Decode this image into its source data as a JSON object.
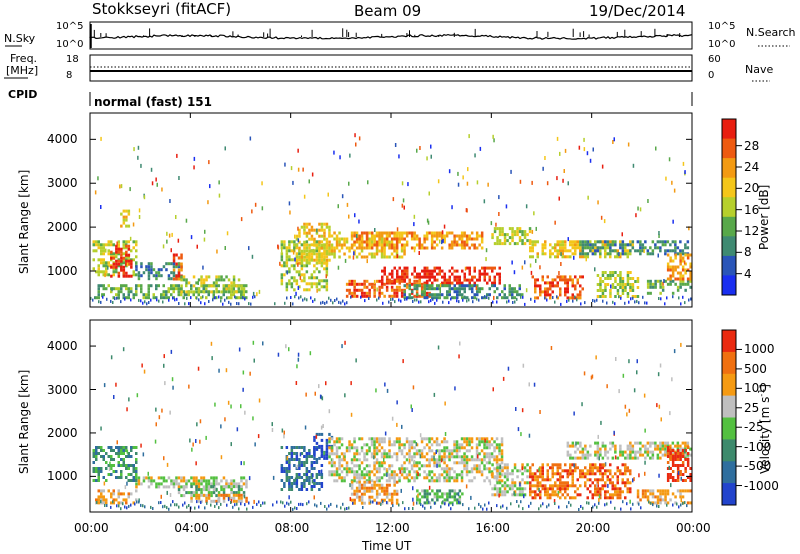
{
  "header": {
    "station": "Stokkseyri (fitACF)",
    "beam": "Beam 09",
    "date": "19/Dec/2014"
  },
  "params": {
    "nsky_label": "N.Sky",
    "nsky_ticks": [
      "10^5",
      "10^0"
    ],
    "nsearch_label": "N.Search",
    "nsearch_ticks": [
      "10^5",
      "10^0"
    ],
    "freq_label_1": "Freq.",
    "freq_label_2": "[MHz]",
    "freq_ticks": [
      "18",
      "8"
    ],
    "nave_label": "Nave",
    "nave_ticks": [
      "60",
      "0"
    ],
    "cpid_label": "CPID",
    "cpid_value": "normal (fast) 151"
  },
  "xaxis": {
    "label": "Time UT",
    "ticks": [
      "00:00",
      "04:00",
      "08:00",
      "12:00",
      "16:00",
      "20:00",
      "00:00"
    ],
    "range_hours": [
      0,
      24
    ]
  },
  "power_panel": {
    "ylabel": "Slant Range [km]",
    "yticks": [
      "1000",
      "2000",
      "3000",
      "4000"
    ],
    "ylim_km": [
      180,
      4600
    ],
    "colorbar_label": "Power [dB]",
    "colorbar_ticks": [
      "4",
      "8",
      "12",
      "16",
      "20",
      "24",
      "28"
    ],
    "colors": [
      "#1a2ff0",
      "#2a55b8",
      "#3f8a72",
      "#58a84a",
      "#b6cf2c",
      "#f4c61a",
      "#f39a12",
      "#ee5a10",
      "#e81e10"
    ]
  },
  "velocity_panel": {
    "ylabel": "Slant Range [km]",
    "yticks": [
      "1000",
      "2000",
      "3000",
      "4000"
    ],
    "ylim_km": [
      180,
      4600
    ],
    "colorbar_label": "Velocity [m s",
    "colorbar_label_sup": "-1",
    "colorbar_label_end": "]",
    "colorbar_ticks": [
      "1000",
      "500",
      "100",
      "25",
      "-25",
      "-100",
      "-500",
      "-1000"
    ],
    "colors": [
      "#2244cc",
      "#2f6e9e",
      "#3d8a6c",
      "#53c040",
      "#bfbfbf",
      "#f59a12",
      "#f07010",
      "#ea2a10"
    ]
  },
  "chart_data": {
    "type": "heatmap",
    "x_unit": "hours UT",
    "y_unit": "slant range km",
    "power_blocks": [
      {
        "t0": 0.1,
        "t1": 1.8,
        "r0": 900,
        "r1": 1700,
        "level": 4
      },
      {
        "t0": 0.8,
        "t1": 1.6,
        "r0": 900,
        "r1": 1600,
        "level": 8
      },
      {
        "t0": 1.8,
        "t1": 3.6,
        "r0": 800,
        "r1": 1200,
        "level": 2
      },
      {
        "t0": 3.3,
        "t1": 3.6,
        "r0": 800,
        "r1": 1400,
        "level": 7
      },
      {
        "t0": 0.2,
        "t1": 6.2,
        "r0": 400,
        "r1": 700,
        "level": 3
      },
      {
        "t0": 3.6,
        "t1": 6.1,
        "r0": 500,
        "r1": 900,
        "level": 4
      },
      {
        "t0": 1.2,
        "t1": 1.5,
        "r0": 2000,
        "r1": 2400,
        "level": 5
      },
      {
        "t0": 7.6,
        "t1": 9.4,
        "r0": 600,
        "r1": 1700,
        "level": 4
      },
      {
        "t0": 8.2,
        "t1": 9.5,
        "r0": 1200,
        "r1": 2100,
        "level": 5
      },
      {
        "t0": 9.5,
        "t1": 12.5,
        "r0": 1300,
        "r1": 1900,
        "level": 5
      },
      {
        "t0": 10.5,
        "t1": 15.6,
        "r0": 1500,
        "r1": 1900,
        "level": 6
      },
      {
        "t0": 11.6,
        "t1": 16.3,
        "r0": 700,
        "r1": 1100,
        "level": 8
      },
      {
        "t0": 10.2,
        "t1": 13.5,
        "r0": 400,
        "r1": 800,
        "level": 7
      },
      {
        "t0": 12.5,
        "t1": 17.2,
        "r0": 400,
        "r1": 700,
        "level": 2
      },
      {
        "t0": 16.0,
        "t1": 17.5,
        "r0": 1600,
        "r1": 2000,
        "level": 4
      },
      {
        "t0": 17.6,
        "t1": 19.6,
        "r0": 400,
        "r1": 900,
        "level": 7
      },
      {
        "t0": 17.5,
        "t1": 21.6,
        "r0": 1300,
        "r1": 1700,
        "level": 5
      },
      {
        "t0": 19.5,
        "t1": 23.9,
        "r0": 1400,
        "r1": 1700,
        "level": 2
      },
      {
        "t0": 20.2,
        "t1": 21.8,
        "r0": 400,
        "r1": 1000,
        "level": 4
      },
      {
        "t0": 22.2,
        "t1": 23.9,
        "r0": 500,
        "r1": 800,
        "level": 3
      },
      {
        "t0": 23.0,
        "t1": 23.9,
        "r0": 800,
        "r1": 1400,
        "level": 6
      }
    ],
    "velocity_blocks": [
      {
        "t0": 0.1,
        "t1": 1.8,
        "r0": 900,
        "r1": 1700,
        "level": 2
      },
      {
        "t0": 0.2,
        "t1": 1.8,
        "r0": 400,
        "r1": 700,
        "level": 5
      },
      {
        "t0": 1.8,
        "t1": 6.2,
        "r0": 750,
        "r1": 1000,
        "level": 4
      },
      {
        "t0": 3.5,
        "t1": 6.1,
        "r0": 550,
        "r1": 800,
        "level": 3
      },
      {
        "t0": 4.0,
        "t1": 6.2,
        "r0": 400,
        "r1": 600,
        "level": 5
      },
      {
        "t0": 7.6,
        "t1": 9.2,
        "r0": 700,
        "r1": 1700,
        "level": 1
      },
      {
        "t0": 8.9,
        "t1": 9.6,
        "r0": 1400,
        "r1": 2000,
        "level": 0
      },
      {
        "t0": 9.5,
        "t1": 16.4,
        "r0": 900,
        "r1": 1900,
        "level": 4
      },
      {
        "t0": 10.4,
        "t1": 12.2,
        "r0": 400,
        "r1": 900,
        "level": 5
      },
      {
        "t0": 13.0,
        "t1": 14.8,
        "r0": 400,
        "r1": 700,
        "level": 3
      },
      {
        "t0": 16.0,
        "t1": 17.4,
        "r0": 600,
        "r1": 1300,
        "level": 4
      },
      {
        "t0": 17.5,
        "t1": 21.5,
        "r0": 500,
        "r1": 1300,
        "level": 6
      },
      {
        "t0": 19.0,
        "t1": 23.9,
        "r0": 1400,
        "r1": 1800,
        "level": 4
      },
      {
        "t0": 21.8,
        "t1": 23.9,
        "r0": 400,
        "r1": 700,
        "level": 5
      },
      {
        "t0": 23.0,
        "t1": 23.9,
        "r0": 900,
        "r1": 1700,
        "level": 7
      }
    ]
  }
}
